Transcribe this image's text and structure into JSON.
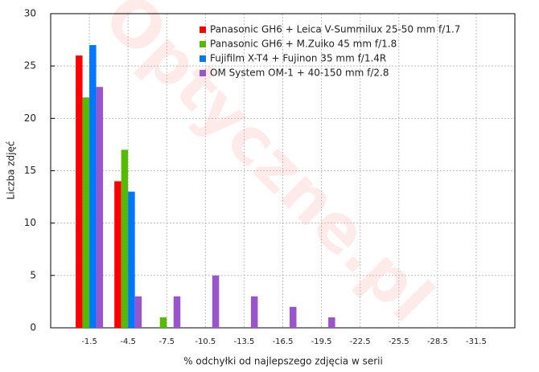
{
  "chart_data": {
    "type": "bar",
    "watermark": "Optyczne.pl",
    "x_label": "% odchyłki od najlepszego zdjęcia w serii",
    "y_label": "Liczba zdjęć",
    "categories": [
      "-1.5",
      "-4.5",
      "-7.5",
      "-10.5",
      "-13.5",
      "-16.5",
      "-19.5",
      "-22.5",
      "-25.5",
      "-28.5",
      "-31.5"
    ],
    "series": [
      {
        "name": "Panasonic GH6 + Leica V-Summilux 25-50 mm f/1.7",
        "color": "#ff0000",
        "values": [
          26,
          14,
          0,
          0,
          0,
          0,
          0,
          0,
          0,
          0,
          0
        ]
      },
      {
        "name": "Panasonic GH6 + M.Zuiko 45 mm f/1.8",
        "color": "#55bb00",
        "values": [
          22,
          17,
          1,
          0,
          0,
          0,
          0,
          0,
          0,
          0,
          0
        ]
      },
      {
        "name": "Fujifilm X-T4 + Fujinon 35 mm f/1.4R",
        "color": "#0077ff",
        "values": [
          27,
          13,
          0,
          0,
          0,
          0,
          0,
          0,
          0,
          0,
          0
        ]
      },
      {
        "name": "OM System OM-1 + 40-150 mm f/2.8",
        "color": "#9955cc",
        "values": [
          23,
          3,
          3,
          5,
          3,
          2,
          1,
          0,
          0,
          0,
          0
        ]
      }
    ],
    "ylim": [
      0,
      30
    ],
    "yticks": [
      0,
      5,
      10,
      15,
      20,
      25,
      30
    ],
    "grid": true,
    "legend": "top"
  }
}
